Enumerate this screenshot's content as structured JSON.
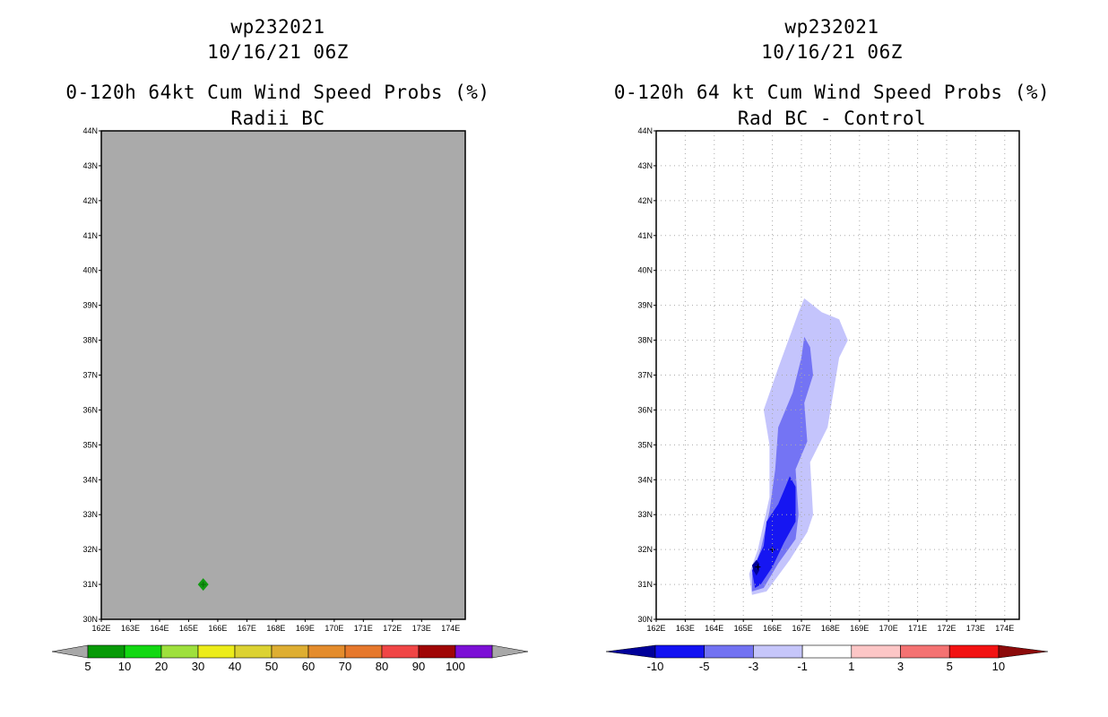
{
  "colors": {
    "bg": "#ffffff",
    "left_field": "#aaaaaa",
    "storm_marker": "#119911",
    "grid": "#aaaaaa"
  },
  "left": {
    "title_line1": "wp232021",
    "title_line2": "10/16/21 06Z",
    "title_line3": "0-120h 64kt Cum Wind Speed Probs (%)",
    "title_line4": "Radii BC"
  },
  "right": {
    "title_line1": "wp232021",
    "title_line2": "10/16/21 06Z",
    "title_line3": "0-120h 64 kt Cum Wind Speed Probs (%)",
    "title_line4": "Rad BC - Control"
  },
  "chart_data": [
    {
      "type": "heatmap",
      "title": "0-120h 64kt Cum Wind Speed Probs (%) Radii BC",
      "x_tick_labels": [
        "162E",
        "163E",
        "164E",
        "165E",
        "166E",
        "167E",
        "168E",
        "169E",
        "170E",
        "171E",
        "172E",
        "173E",
        "174E"
      ],
      "y_tick_labels": [
        "30N",
        "31N",
        "32N",
        "33N",
        "34N",
        "35N",
        "36N",
        "37N",
        "38N",
        "39N",
        "40N",
        "41N",
        "42N",
        "43N",
        "44N"
      ],
      "xlim": [
        162,
        174.5
      ],
      "ylim": [
        30,
        44
      ],
      "grid": false,
      "field_value": "below 5",
      "storm_marker": {
        "lon": 165.5,
        "lat": 31.0
      },
      "colorbar": {
        "labels": [
          "5",
          "10",
          "20",
          "30",
          "40",
          "50",
          "60",
          "70",
          "80",
          "90",
          "100"
        ],
        "colors": [
          "#079a07",
          "#12d812",
          "#9ee03c",
          "#ecec1a",
          "#dcd232",
          "#deae32",
          "#e48c2c",
          "#e6782c",
          "#f04646",
          "#a00606",
          "#7c10d6"
        ],
        "low_color": "#a8a8a8",
        "high_color": "#a8a8a8"
      }
    },
    {
      "type": "heatmap",
      "title": "0-120h 64 kt Cum Wind Speed Probs (%) Rad BC - Control",
      "x_tick_labels": [
        "162E",
        "163E",
        "164E",
        "165E",
        "166E",
        "167E",
        "168E",
        "169E",
        "170E",
        "171E",
        "172E",
        "173E",
        "174E"
      ],
      "y_tick_labels": [
        "30N",
        "31N",
        "32N",
        "33N",
        "34N",
        "35N",
        "36N",
        "37N",
        "38N",
        "39N",
        "40N",
        "41N",
        "42N",
        "43N",
        "44N"
      ],
      "xlim": [
        162,
        174.5
      ],
      "ylim": [
        30,
        44
      ],
      "grid": true,
      "contours": [
        {
          "level": "-3 to -1",
          "color": "#c4c4fc",
          "polygon_lonlat": [
            [
              165.3,
              30.7
            ],
            [
              165.2,
              31.3
            ],
            [
              165.5,
              32.0
            ],
            [
              165.9,
              33.5
            ],
            [
              165.9,
              35.0
            ],
            [
              165.7,
              36.0
            ],
            [
              166.2,
              37.2
            ],
            [
              166.9,
              38.8
            ],
            [
              167.1,
              39.2
            ],
            [
              167.7,
              38.8
            ],
            [
              168.3,
              38.6
            ],
            [
              168.6,
              38.0
            ],
            [
              168.3,
              37.5
            ],
            [
              168.1,
              36.5
            ],
            [
              167.9,
              35.5
            ],
            [
              167.3,
              34.5
            ],
            [
              167.4,
              33.0
            ],
            [
              167.2,
              32.5
            ],
            [
              166.6,
              31.7
            ],
            [
              165.8,
              30.8
            ]
          ]
        },
        {
          "level": "-5 to -3",
          "color": "#7474f4",
          "polygon_lonlat": [
            [
              165.3,
              30.8
            ],
            [
              165.3,
              31.3
            ],
            [
              165.6,
              32.0
            ],
            [
              165.9,
              33.1
            ],
            [
              166.1,
              34.3
            ],
            [
              166.2,
              35.5
            ],
            [
              166.7,
              36.5
            ],
            [
              167.0,
              37.5
            ],
            [
              167.1,
              38.1
            ],
            [
              167.3,
              37.8
            ],
            [
              167.4,
              37.0
            ],
            [
              167.1,
              36.2
            ],
            [
              167.2,
              35.1
            ],
            [
              166.8,
              34.3
            ],
            [
              166.9,
              33.0
            ],
            [
              166.8,
              32.3
            ],
            [
              166.2,
              31.6
            ],
            [
              165.7,
              30.9
            ]
          ]
        },
        {
          "level": "-10 to -5",
          "color": "#1616f2",
          "polygon_lonlat": [
            [
              165.4,
              30.9
            ],
            [
              165.3,
              31.4
            ],
            [
              165.7,
              32.1
            ],
            [
              165.8,
              32.8
            ],
            [
              166.2,
              33.3
            ],
            [
              166.4,
              33.7
            ],
            [
              166.6,
              34.1
            ],
            [
              166.8,
              33.8
            ],
            [
              166.8,
              32.8
            ],
            [
              166.4,
              32.2
            ],
            [
              166.0,
              31.5
            ],
            [
              165.6,
              31.0
            ]
          ]
        },
        {
          "level": "below -10",
          "color": "#00009a",
          "polygon_lonlat": [
            [
              165.3,
              31.55
            ],
            [
              165.35,
              31.4
            ],
            [
              165.45,
              31.25
            ],
            [
              165.55,
              31.4
            ],
            [
              165.55,
              31.6
            ],
            [
              165.45,
              31.7
            ]
          ]
        }
      ],
      "colorbar": {
        "labels": [
          "-10",
          "-5",
          "-3",
          "-1",
          "1",
          "3",
          "5",
          "10"
        ],
        "colors": [
          "#1212f2",
          "#7272f2",
          "#c6c6fa",
          "#ffffff",
          "#fcc6c6",
          "#f47272",
          "#f21212"
        ],
        "low_color": "#00009a",
        "high_color": "#8c0a0a"
      }
    }
  ]
}
